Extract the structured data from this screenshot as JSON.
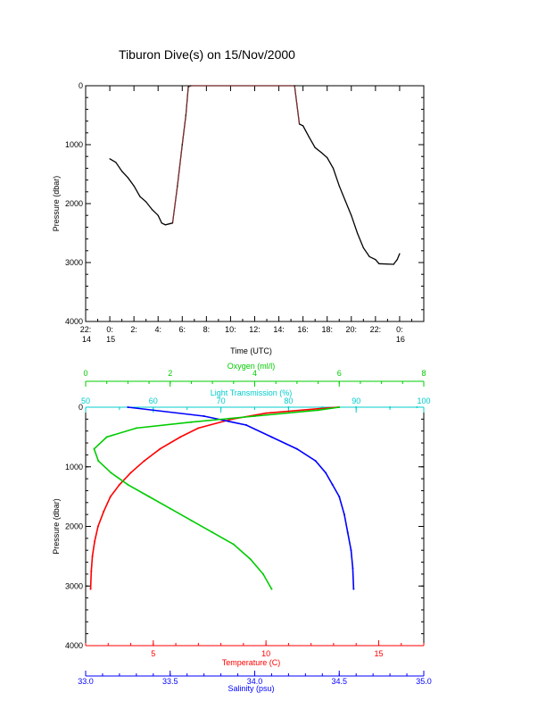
{
  "title": "Tiburon Dive(s) on 15/Nov/2000",
  "colors": {
    "axis": "#000000",
    "dive_line": "#000000",
    "dive_highlight": "#b03030",
    "temperature": "#ff0000",
    "salinity": "#0000ff",
    "oxygen": "#00cc00",
    "transmission": "#00cccc"
  },
  "chart_data": [
    {
      "type": "line",
      "title": "Tiburon Dive(s) on 15/Nov/2000",
      "xlabel": "Time (UTC)",
      "ylabel": "Pressure (dbar)",
      "ylim": [
        4000,
        0
      ],
      "yticks": [
        "0",
        "1000",
        "2000",
        "3000",
        "4000"
      ],
      "xticks": [
        {
          "line1": "22:",
          "line2": "14"
        },
        {
          "line1": "0:",
          "line2": "15"
        },
        {
          "line1": "2:",
          "line2": ""
        },
        {
          "line1": "4:",
          "line2": ""
        },
        {
          "line1": "6:",
          "line2": ""
        },
        {
          "line1": "8:",
          "line2": ""
        },
        {
          "line1": "10:",
          "line2": ""
        },
        {
          "line1": "12:",
          "line2": ""
        },
        {
          "line1": "14:",
          "line2": ""
        },
        {
          "line1": "16:",
          "line2": ""
        },
        {
          "line1": "18:",
          "line2": ""
        },
        {
          "line1": "20:",
          "line2": ""
        },
        {
          "line1": "22:",
          "line2": ""
        },
        {
          "line1": "0:",
          "line2": "16"
        }
      ],
      "xlim_hours": [
        -2,
        26
      ],
      "series": [
        {
          "values_hours": [
            0.0,
            0.5,
            1.0,
            1.5,
            2.0,
            2.5,
            3.0,
            3.5,
            4.0,
            4.3,
            4.6,
            5.0,
            5.2,
            5.6,
            6.0,
            6.3,
            6.5,
            6.7,
            15.3,
            15.7,
            16.0,
            16.5,
            17.0,
            17.5,
            18.0,
            18.5,
            19.0,
            19.5,
            20.0,
            20.5,
            21.0,
            21.5,
            22.0,
            22.3,
            23.5,
            23.8,
            24.0
          ],
          "pressure": [
            1240,
            1300,
            1450,
            1560,
            1700,
            1880,
            1970,
            2100,
            2200,
            2330,
            2360,
            2340,
            2330,
            1700,
            1000,
            500,
            20,
            0,
            0,
            650,
            680,
            870,
            1050,
            1130,
            1220,
            1400,
            1700,
            1950,
            2200,
            2500,
            2750,
            2900,
            2950,
            3020,
            3030,
            2950,
            2850
          ]
        }
      ]
    },
    {
      "type": "scatter",
      "ylabel": "Pressure (dbar)",
      "ylim": [
        4000,
        0
      ],
      "yticks": [
        "0",
        "1000",
        "2000",
        "3000",
        "4000"
      ],
      "axes": {
        "oxygen": {
          "label": "Oxygen (ml/l)",
          "range": [
            0,
            8
          ],
          "ticks": [
            "0",
            "2",
            "4",
            "6",
            "8"
          ]
        },
        "transmission": {
          "label": "Light Transmission (%)",
          "range": [
            50,
            100
          ],
          "ticks": [
            "50",
            "60",
            "70",
            "80",
            "90",
            "100"
          ]
        },
        "temperature": {
          "label": "Temperature (C)",
          "range": [
            2,
            17
          ],
          "ticks": [
            "5",
            "10",
            "15"
          ]
        },
        "salinity": {
          "label": "Salinity (psu)",
          "range": [
            33.0,
            35.0
          ],
          "ticks": [
            "33.0",
            "33.5",
            "34.0",
            "34.5",
            "35.0"
          ]
        }
      },
      "series": [
        {
          "variable": "temperature",
          "points": [
            [
              13.2,
              0
            ],
            [
              12.5,
              20
            ],
            [
              10.0,
              100
            ],
            [
              8.5,
              200
            ],
            [
              7.0,
              350
            ],
            [
              6.2,
              500
            ],
            [
              5.3,
              700
            ],
            [
              4.6,
              900
            ],
            [
              4.0,
              1100
            ],
            [
              3.5,
              1300
            ],
            [
              3.1,
              1500
            ],
            [
              2.8,
              1750
            ],
            [
              2.55,
              2000
            ],
            [
              2.4,
              2250
            ],
            [
              2.3,
              2500
            ],
            [
              2.25,
              2750
            ],
            [
              2.22,
              3050
            ]
          ]
        },
        {
          "variable": "salinity",
          "points": [
            [
              33.25,
              0
            ],
            [
              33.7,
              150
            ],
            [
              33.95,
              300
            ],
            [
              34.1,
              500
            ],
            [
              34.25,
              700
            ],
            [
              34.36,
              900
            ],
            [
              34.42,
              1100
            ],
            [
              34.46,
              1300
            ],
            [
              34.5,
              1500
            ],
            [
              34.53,
              1800
            ],
            [
              34.55,
              2100
            ],
            [
              34.57,
              2400
            ],
            [
              34.58,
              2700
            ],
            [
              34.585,
              3050
            ]
          ]
        },
        {
          "variable": "oxygen",
          "points": [
            [
              6.0,
              0
            ],
            [
              5.5,
              50
            ],
            [
              4.0,
              150
            ],
            [
              2.5,
              250
            ],
            [
              1.2,
              350
            ],
            [
              0.5,
              500
            ],
            [
              0.2,
              700
            ],
            [
              0.3,
              900
            ],
            [
              0.6,
              1100
            ],
            [
              1.0,
              1300
            ],
            [
              1.5,
              1500
            ],
            [
              2.0,
              1700
            ],
            [
              2.5,
              1900
            ],
            [
              3.0,
              2100
            ],
            [
              3.5,
              2300
            ],
            [
              3.9,
              2550
            ],
            [
              4.2,
              2800
            ],
            [
              4.4,
              3050
            ]
          ]
        },
        {
          "variable": "transmission",
          "points": [
            [
              80,
              0
            ],
            [
              85,
              0
            ],
            [
              90,
              0
            ],
            [
              95,
              0
            ],
            [
              99,
              0
            ]
          ]
        }
      ]
    }
  ]
}
